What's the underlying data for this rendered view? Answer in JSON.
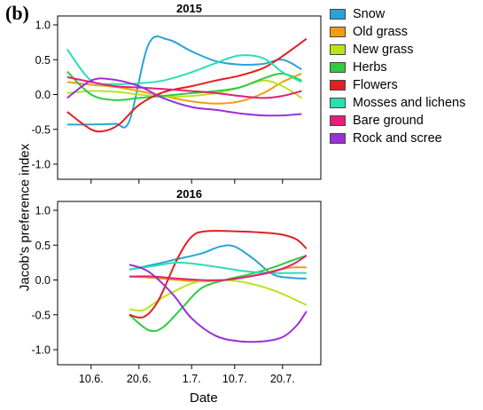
{
  "panel_label": "(b)",
  "chart_data": [
    {
      "type": "line",
      "title": "2015",
      "xlabel": "Date",
      "ylabel": "Jacob's preference index",
      "xticks": [
        "10.6.",
        "20.6.",
        "1.7.",
        "10.7.",
        "20.7."
      ],
      "xlim": [
        "2015-06-03",
        "2015-07-28"
      ],
      "yticks": [
        "1.0",
        "0.5",
        "0.0",
        "-0.5",
        "-1.0"
      ],
      "ylim": [
        -1.0,
        1.0
      ],
      "legend_position": "right",
      "series": [
        {
          "name": "Snow",
          "color": "#29a3d9",
          "x": [
            "2015-06-05",
            "2015-06-10",
            "2015-06-15",
            "2015-06-18",
            "2015-06-22",
            "2015-06-26",
            "2015-07-01",
            "2015-07-06",
            "2015-07-11",
            "2015-07-16",
            "2015-07-20",
            "2015-07-24"
          ],
          "y": [
            -0.43,
            -0.43,
            -0.42,
            -0.38,
            0.72,
            0.79,
            0.62,
            0.48,
            0.43,
            0.44,
            0.5,
            0.36
          ]
        },
        {
          "name": "Old grass",
          "color": "#f39c12",
          "x": [
            "2015-06-05",
            "2015-06-10",
            "2015-06-15",
            "2015-06-20",
            "2015-06-25",
            "2015-07-01",
            "2015-07-06",
            "2015-07-11",
            "2015-07-16",
            "2015-07-20",
            "2015-07-24"
          ],
          "y": [
            0.18,
            0.14,
            0.11,
            0.05,
            -0.02,
            -0.1,
            -0.13,
            -0.1,
            0.02,
            0.18,
            0.3
          ]
        },
        {
          "name": "New grass",
          "color": "#b5e61d",
          "x": [
            "2015-06-05",
            "2015-06-10",
            "2015-06-15",
            "2015-06-20",
            "2015-06-25",
            "2015-07-01",
            "2015-07-06",
            "2015-07-11",
            "2015-07-16",
            "2015-07-20",
            "2015-07-24"
          ],
          "y": [
            0.02,
            0.05,
            0.04,
            0.0,
            -0.03,
            -0.02,
            0.02,
            0.1,
            0.2,
            0.12,
            -0.05
          ]
        },
        {
          "name": "Herbs",
          "color": "#2ecc40",
          "x": [
            "2015-06-05",
            "2015-06-10",
            "2015-06-15",
            "2015-06-20",
            "2015-06-25",
            "2015-07-01",
            "2015-07-06",
            "2015-07-11",
            "2015-07-16",
            "2015-07-20",
            "2015-07-24"
          ],
          "y": [
            0.33,
            0.0,
            -0.08,
            -0.05,
            -0.02,
            0.02,
            0.05,
            0.1,
            0.23,
            0.3,
            0.2
          ]
        },
        {
          "name": "Flowers",
          "color": "#e02020",
          "x": [
            "2015-06-05",
            "2015-06-10",
            "2015-06-13",
            "2015-06-16",
            "2015-06-20",
            "2015-06-25",
            "2015-07-01",
            "2015-07-06",
            "2015-07-11",
            "2015-07-16",
            "2015-07-20",
            "2015-07-25"
          ],
          "y": [
            -0.25,
            -0.5,
            -0.52,
            -0.42,
            -0.15,
            0.03,
            0.12,
            0.2,
            0.27,
            0.38,
            0.55,
            0.8
          ]
        },
        {
          "name": "Mosses and lichens",
          "color": "#27e0b0",
          "x": [
            "2015-06-05",
            "2015-06-10",
            "2015-06-15",
            "2015-06-20",
            "2015-06-25",
            "2015-07-01",
            "2015-07-06",
            "2015-07-11",
            "2015-07-16",
            "2015-07-20",
            "2015-07-24"
          ],
          "y": [
            0.65,
            0.2,
            0.15,
            0.16,
            0.2,
            0.32,
            0.45,
            0.56,
            0.52,
            0.32,
            0.18
          ]
        },
        {
          "name": "Bare ground",
          "color": "#e0207a",
          "x": [
            "2015-06-05",
            "2015-06-10",
            "2015-06-15",
            "2015-06-20",
            "2015-06-25",
            "2015-07-01",
            "2015-07-06",
            "2015-07-11",
            "2015-07-16",
            "2015-07-20",
            "2015-07-24"
          ],
          "y": [
            0.25,
            0.18,
            0.12,
            0.1,
            0.08,
            0.05,
            0.02,
            -0.02,
            -0.05,
            -0.02,
            0.05
          ]
        },
        {
          "name": "Rock and scree",
          "color": "#9b30d9",
          "x": [
            "2015-06-05",
            "2015-06-10",
            "2015-06-14",
            "2015-06-20",
            "2015-06-25",
            "2015-07-01",
            "2015-07-06",
            "2015-07-11",
            "2015-07-16",
            "2015-07-20",
            "2015-07-24"
          ],
          "y": [
            -0.05,
            0.2,
            0.22,
            0.12,
            -0.05,
            -0.18,
            -0.22,
            -0.27,
            -0.3,
            -0.3,
            -0.28
          ]
        }
      ]
    },
    {
      "type": "line",
      "title": "2016",
      "xlabel": "Date",
      "ylabel": "Jacob's preference index",
      "xticks": [
        "10.6.",
        "20.6.",
        "1.7.",
        "10.7.",
        "20.7."
      ],
      "xlim": [
        "2016-06-03",
        "2016-07-28"
      ],
      "yticks": [
        "1.0",
        "0.5",
        "0.0",
        "-0.5",
        "-1.0"
      ],
      "ylim": [
        -1.0,
        1.0
      ],
      "series": [
        {
          "name": "Snow",
          "color": "#29a3d9",
          "x": [
            "2016-06-18",
            "2016-06-23",
            "2016-06-28",
            "2016-07-03",
            "2016-07-07",
            "2016-07-10",
            "2016-07-14",
            "2016-07-18",
            "2016-07-22",
            "2016-07-25"
          ],
          "y": [
            0.15,
            0.22,
            0.3,
            0.38,
            0.48,
            0.48,
            0.3,
            0.08,
            0.03,
            0.02
          ]
        },
        {
          "name": "Old grass",
          "color": "#f39c12",
          "x": [
            "2016-06-18",
            "2016-06-23",
            "2016-06-28",
            "2016-07-03",
            "2016-07-08",
            "2016-07-13",
            "2016-07-18",
            "2016-07-22",
            "2016-07-25"
          ],
          "y": [
            0.05,
            0.03,
            0.0,
            -0.02,
            0.0,
            0.05,
            0.13,
            0.18,
            0.18
          ]
        },
        {
          "name": "New grass",
          "color": "#b5e61d",
          "x": [
            "2016-06-18",
            "2016-06-21",
            "2016-06-25",
            "2016-07-01",
            "2016-07-06",
            "2016-07-11",
            "2016-07-16",
            "2016-07-20",
            "2016-07-25"
          ],
          "y": [
            -0.42,
            -0.43,
            -0.25,
            -0.05,
            0.0,
            -0.02,
            -0.1,
            -0.2,
            -0.36
          ]
        },
        {
          "name": "Herbs",
          "color": "#2ecc40",
          "x": [
            "2016-06-18",
            "2016-06-22",
            "2016-06-25",
            "2016-06-29",
            "2016-07-03",
            "2016-07-08",
            "2016-07-13",
            "2016-07-18",
            "2016-07-22",
            "2016-07-25"
          ],
          "y": [
            -0.5,
            -0.72,
            -0.68,
            -0.4,
            -0.12,
            0.0,
            0.08,
            0.18,
            0.28,
            0.35
          ]
        },
        {
          "name": "Flowers",
          "color": "#e02020",
          "x": [
            "2016-06-18",
            "2016-06-21",
            "2016-06-24",
            "2016-06-28",
            "2016-07-01",
            "2016-07-04",
            "2016-07-10",
            "2016-07-16",
            "2016-07-20",
            "2016-07-23",
            "2016-07-25"
          ],
          "y": [
            -0.5,
            -0.53,
            -0.3,
            0.3,
            0.62,
            0.7,
            0.7,
            0.68,
            0.65,
            0.58,
            0.45
          ]
        },
        {
          "name": "Mosses and lichens",
          "color": "#27e0b0",
          "x": [
            "2016-06-18",
            "2016-06-23",
            "2016-06-28",
            "2016-07-03",
            "2016-07-08",
            "2016-07-13",
            "2016-07-18",
            "2016-07-22",
            "2016-07-25"
          ],
          "y": [
            0.15,
            0.2,
            0.25,
            0.22,
            0.17,
            0.12,
            0.1,
            0.1,
            0.1
          ]
        },
        {
          "name": "Bare ground",
          "color": "#e0207a",
          "x": [
            "2016-06-18",
            "2016-06-23",
            "2016-06-28",
            "2016-07-03",
            "2016-07-08",
            "2016-07-13",
            "2016-07-18",
            "2016-07-22",
            "2016-07-25"
          ],
          "y": [
            0.05,
            0.05,
            0.02,
            0.0,
            0.0,
            0.05,
            0.12,
            0.22,
            0.35
          ]
        },
        {
          "name": "Rock and scree",
          "color": "#9b30d9",
          "x": [
            "2016-06-18",
            "2016-06-22",
            "2016-06-27",
            "2016-07-01",
            "2016-07-06",
            "2016-07-11",
            "2016-07-16",
            "2016-07-20",
            "2016-07-23",
            "2016-07-25"
          ],
          "y": [
            0.22,
            0.12,
            -0.2,
            -0.55,
            -0.8,
            -0.88,
            -0.88,
            -0.82,
            -0.65,
            -0.45
          ]
        }
      ]
    }
  ]
}
